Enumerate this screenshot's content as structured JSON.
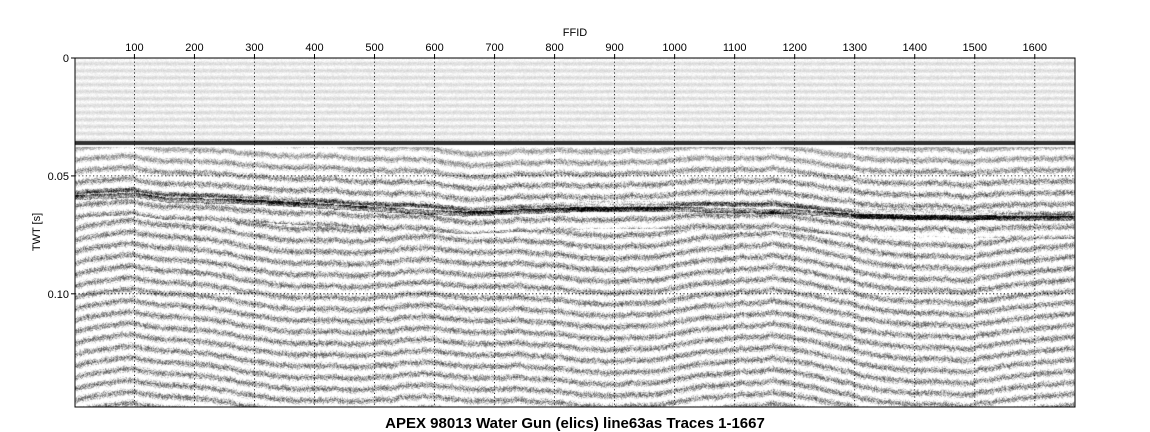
{
  "chart_data": {
    "type": "heatmap",
    "title": "APEX 98013 Water Gun (elics) line63as Traces 1-1667",
    "xlabel": "FFID",
    "ylabel": "TWT [s]",
    "xlim": [
      1,
      1667
    ],
    "ylim": [
      0,
      0.148
    ],
    "y_axis_inverted": true,
    "x_axis_position": "top",
    "x_ticks": [
      100,
      200,
      300,
      400,
      500,
      600,
      700,
      800,
      900,
      1000,
      1100,
      1200,
      1300,
      1400,
      1500,
      1600
    ],
    "x_tick_labels": [
      "100",
      "200",
      "300",
      "400",
      "500",
      "600",
      "700",
      "800",
      "900",
      "1000",
      "1100",
      "1200",
      "1300",
      "1400",
      "1500",
      "1600"
    ],
    "y_ticks": [
      0,
      0.05,
      0.1
    ],
    "y_tick_labels": [
      "0",
      "0.05",
      "0.10"
    ],
    "grid": true,
    "colormap": "grayscale",
    "seafloor_reflector_twt": 0.036,
    "subbottom_reflector_twt": [
      {
        "ffid": 1,
        "twt": 0.059
      },
      {
        "ffid": 100,
        "twt": 0.058
      },
      {
        "ffid": 150,
        "twt": 0.06
      },
      {
        "ffid": 300,
        "twt": 0.061
      },
      {
        "ffid": 500,
        "twt": 0.064
      },
      {
        "ffid": 650,
        "twt": 0.066
      },
      {
        "ffid": 850,
        "twt": 0.064
      },
      {
        "ffid": 1000,
        "twt": 0.064
      },
      {
        "ffid": 1200,
        "twt": 0.065
      },
      {
        "ffid": 1250,
        "twt": 0.066
      },
      {
        "ffid": 1300,
        "twt": 0.067
      },
      {
        "ffid": 1667,
        "twt": 0.068
      }
    ]
  }
}
